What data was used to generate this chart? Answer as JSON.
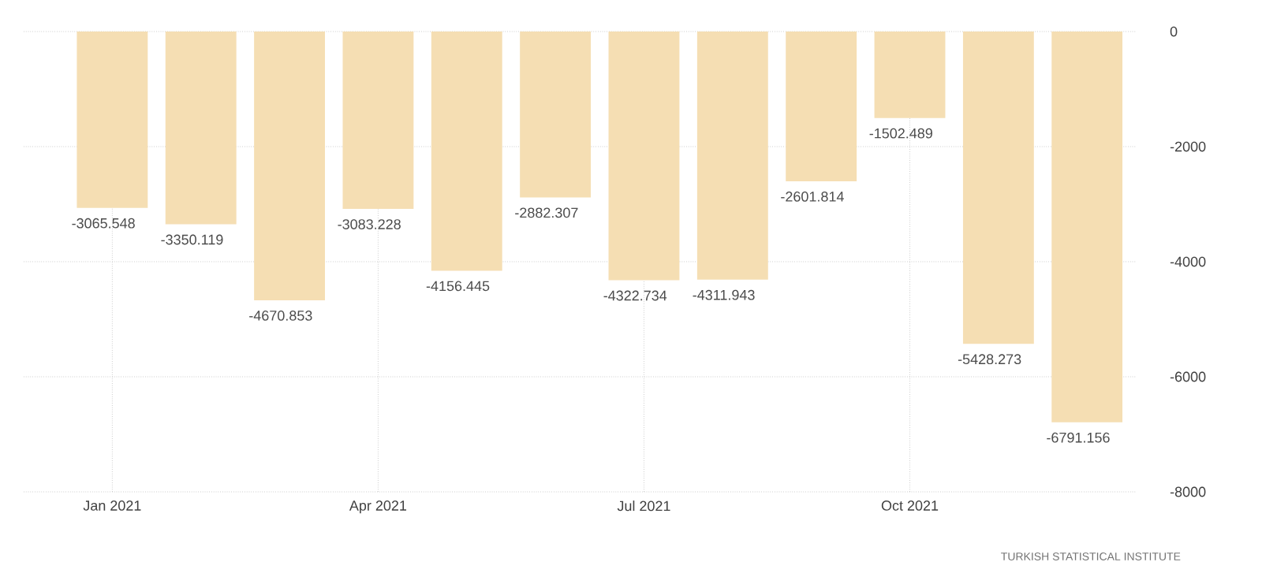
{
  "chart_data": {
    "type": "bar",
    "categories": [
      "Jan 2021",
      null,
      null,
      "Apr 2021",
      null,
      null,
      "Jul 2021",
      null,
      null,
      "Oct 2021",
      null,
      null
    ],
    "values": [
      -3065.548,
      -3350.119,
      -4670.853,
      -3083.228,
      -4156.445,
      -2882.307,
      -4322.734,
      -4311.943,
      -2601.814,
      -1502.489,
      -5428.273,
      -6791.156
    ],
    "color": "#f5deb3",
    "ylim": [
      -8000,
      0
    ],
    "yticks": [
      0,
      -2000,
      -4000,
      -6000,
      -8000
    ],
    "grid": true,
    "data_labels": true,
    "annotations": [
      "TURKISH STATISTICAL INSTITUTE"
    ]
  }
}
